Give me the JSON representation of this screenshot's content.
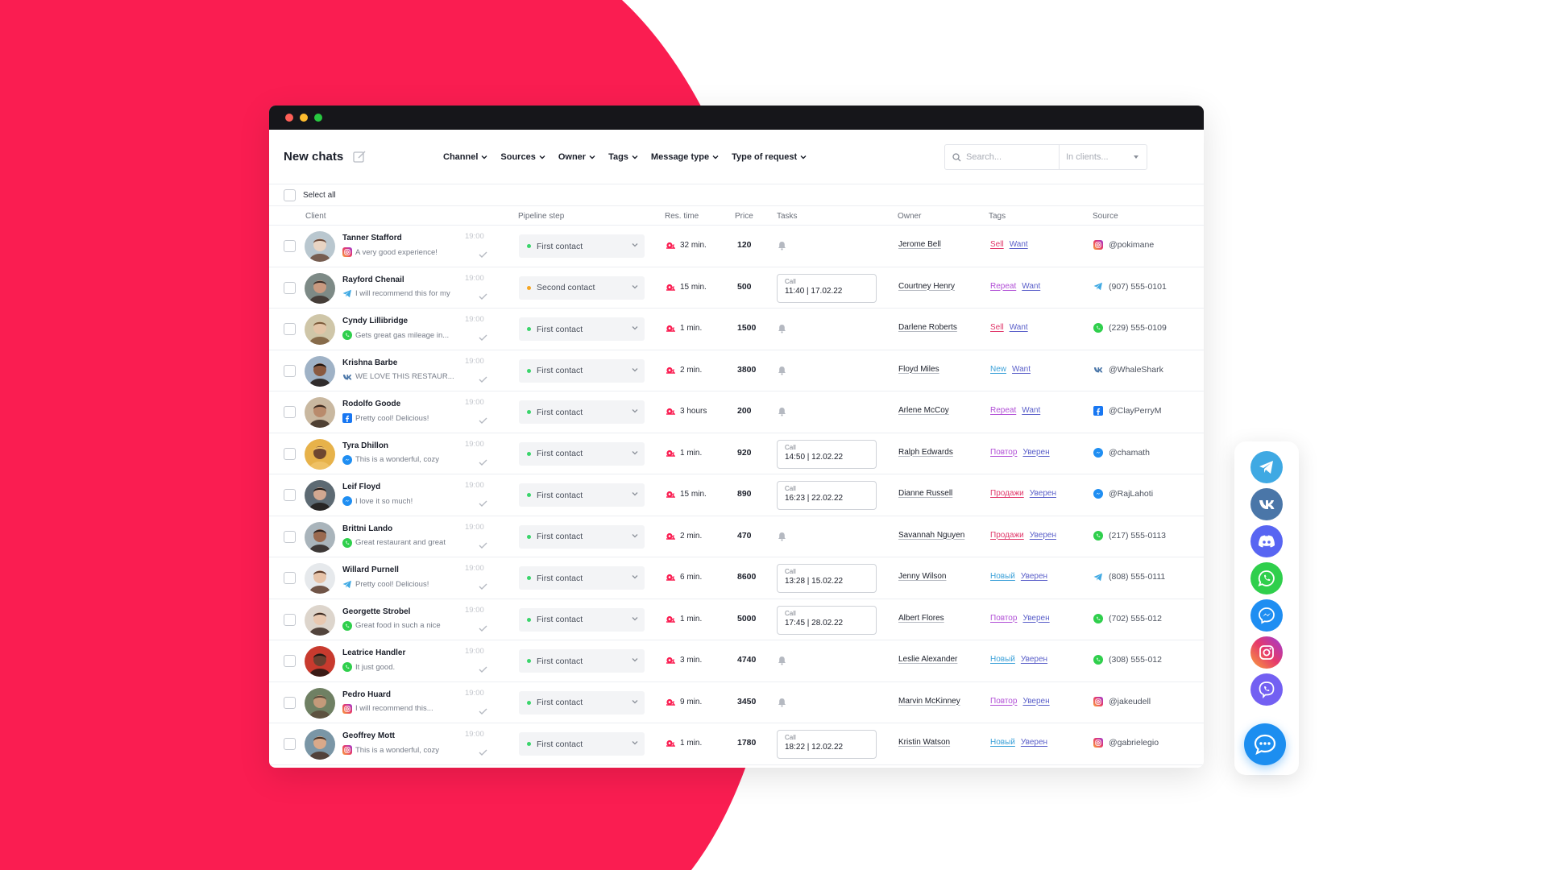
{
  "colors": {
    "accent_red": "#fa1d51",
    "pipeline_green": "#3ad56b",
    "pipeline_orange": "#f6a623",
    "telegram": "#3fa9e3",
    "vk": "#4a76a8",
    "discord": "#5865f2",
    "whatsapp": "#2fcf4c",
    "messenger": "#1f8ef2",
    "instagram": "#e63a6b",
    "viber": "#7360f2",
    "facebook": "#1877f2"
  },
  "header": {
    "title": "New chats",
    "filters": [
      "Channel",
      "Sources",
      "Owner",
      "Tags",
      "Message type",
      "Type of request"
    ],
    "search_placeholder": "Search...",
    "search_scope": "In clients..."
  },
  "select_all_label": "Select all",
  "columns": {
    "client": "Client",
    "pipeline": "Pipeline step",
    "res_time": "Res. time",
    "price": "Price",
    "tasks": "Tasks",
    "owner": "Owner",
    "tags": "Tags",
    "source": "Source"
  },
  "rows": [
    {
      "name": "Tanner Stafford",
      "channel": "instagram",
      "message": "A very good experience!",
      "time": "19:00",
      "pipeline": "First contact",
      "pipeline_color": "green",
      "res_time": "32 min.",
      "price": "120",
      "task": null,
      "owner": "Jerome Bell",
      "tag1": "Sell",
      "tag1_color": "#e0386a",
      "tag2": "Want",
      "source_icon": "instagram",
      "source": "@pokimane"
    },
    {
      "name": "Rayford Chenail",
      "channel": "telegram",
      "message": "I will recommend this for my",
      "time": "19:00",
      "pipeline": "Second contact",
      "pipeline_color": "orange",
      "res_time": "15 min.",
      "price": "500",
      "task": {
        "kind": "Call",
        "value": "11:40 | 17.02.22"
      },
      "owner": "Courtney Henry",
      "tag1": "Repeat",
      "tag1_color": "#b14fd6",
      "tag2": "Want",
      "source_icon": "telegram",
      "source": "(907) 555-0101"
    },
    {
      "name": "Cyndy Lillibridge",
      "channel": "whatsapp",
      "message": "Gets great gas mileage in...",
      "time": "19:00",
      "pipeline": "First contact",
      "pipeline_color": "green",
      "res_time": "1 min.",
      "price": "1500",
      "task": null,
      "owner": "Darlene Roberts",
      "tag1": "Sell",
      "tag1_color": "#e0386a",
      "tag2": "Want",
      "source_icon": "whatsapp",
      "source": "(229) 555-0109"
    },
    {
      "name": "Krishna Barbe",
      "channel": "vk",
      "message": "WE LOVE THIS RESTAUR...",
      "time": "19:00",
      "pipeline": "First contact",
      "pipeline_color": "green",
      "res_time": "2 min.",
      "price": "3800",
      "task": null,
      "owner": "Floyd Miles",
      "tag1": "New",
      "tag1_color": "#3aa0d8",
      "tag2": "Want",
      "source_icon": "vk",
      "source": "@WhaleShark"
    },
    {
      "name": "Rodolfo Goode",
      "channel": "facebook",
      "message": "Pretty cool! Delicious!",
      "time": "19:00",
      "pipeline": "First contact",
      "pipeline_color": "green",
      "res_time": "3 hours",
      "price": "200",
      "task": null,
      "owner": "Arlene McCoy",
      "tag1": "Repeat",
      "tag1_color": "#b14fd6",
      "tag2": "Want",
      "source_icon": "facebook",
      "source": "@ClayPerryM"
    },
    {
      "name": "Tyra Dhillon",
      "channel": "messenger",
      "message": "This is a wonderful, cozy",
      "time": "19:00",
      "pipeline": "First contact",
      "pipeline_color": "green",
      "res_time": "1 min.",
      "price": "920",
      "task": {
        "kind": "Call",
        "value": "14:50 | 12.02.22"
      },
      "owner": "Ralph Edwards",
      "tag1": "Повтор",
      "tag1_color": "#b14fd6",
      "tag2": "Уверен",
      "source_icon": "messenger",
      "source": "@chamath"
    },
    {
      "name": "Leif Floyd",
      "channel": "messenger",
      "message": "I love it so much!",
      "time": "19:00",
      "pipeline": "First contact",
      "pipeline_color": "green",
      "res_time": "15 min.",
      "price": "890",
      "task": {
        "kind": "Call",
        "value": "16:23 | 22.02.22"
      },
      "owner": "Dianne Russell",
      "tag1": "Продажи",
      "tag1_color": "#e0386a",
      "tag2": "Уверен",
      "source_icon": "messenger",
      "source": "@RajLahoti"
    },
    {
      "name": "Brittni Lando",
      "channel": "whatsapp",
      "message": "Great restaurant and great",
      "time": "19:00",
      "pipeline": "First contact",
      "pipeline_color": "green",
      "res_time": "2 min.",
      "price": "470",
      "task": null,
      "owner": "Savannah Nguyen",
      "tag1": "Продажи",
      "tag1_color": "#e0386a",
      "tag2": "Уверен",
      "source_icon": "whatsapp",
      "source": "(217) 555-0113"
    },
    {
      "name": "Willard Purnell",
      "channel": "telegram",
      "message": "Pretty cool! Delicious!",
      "time": "19:00",
      "pipeline": "First contact",
      "pipeline_color": "green",
      "res_time": "6 min.",
      "price": "8600",
      "task": {
        "kind": "Call",
        "value": "13:28 | 15.02.22"
      },
      "owner": "Jenny Wilson",
      "tag1": "Новый",
      "tag1_color": "#3aa0d8",
      "tag2": "Уверен",
      "source_icon": "telegram",
      "source": "(808) 555-0111"
    },
    {
      "name": "Georgette Strobel",
      "channel": "whatsapp",
      "message": "Great food in such a nice",
      "time": "19:00",
      "pipeline": "First contact",
      "pipeline_color": "green",
      "res_time": "1 min.",
      "price": "5000",
      "task": {
        "kind": "Call",
        "value": "17:45 | 28.02.22"
      },
      "owner": "Albert Flores",
      "tag1": "Повтор",
      "tag1_color": "#b14fd6",
      "tag2": "Уверен",
      "source_icon": "whatsapp",
      "source": "(702) 555-012"
    },
    {
      "name": "Leatrice Handler",
      "channel": "whatsapp",
      "message": "It just good.",
      "time": "19:00",
      "pipeline": "First contact",
      "pipeline_color": "green",
      "res_time": "3 min.",
      "price": "4740",
      "task": null,
      "owner": "Leslie Alexander",
      "tag1": "Новый",
      "tag1_color": "#3aa0d8",
      "tag2": "Уверен",
      "source_icon": "whatsapp",
      "source": "(308) 555-012"
    },
    {
      "name": "Pedro Huard",
      "channel": "instagram",
      "message": "I will recommend this...",
      "time": "19:00",
      "pipeline": "First contact",
      "pipeline_color": "green",
      "res_time": "9 min.",
      "price": "3450",
      "task": null,
      "owner": "Marvin McKinney",
      "tag1": "Повтор",
      "tag1_color": "#b14fd6",
      "tag2": "Уверен",
      "source_icon": "instagram",
      "source": "@jakeudell"
    },
    {
      "name": "Geoffrey Mott",
      "channel": "instagram",
      "message": "This is a wonderful, cozy",
      "time": "19:00",
      "pipeline": "First contact",
      "pipeline_color": "green",
      "res_time": "1 min.",
      "price": "1780",
      "task": {
        "kind": "Call",
        "value": "18:22 | 12.02.22"
      },
      "owner": "Kristin Watson",
      "tag1": "Новый",
      "tag1_color": "#3aa0d8",
      "tag2": "Уверен",
      "source_icon": "instagram",
      "source": "@gabrielegio"
    }
  ],
  "side_panel": [
    "telegram-icon",
    "vk-icon",
    "discord-icon",
    "whatsapp-icon",
    "messenger-icon",
    "instagram-icon",
    "viber-icon",
    "chat-icon"
  ]
}
